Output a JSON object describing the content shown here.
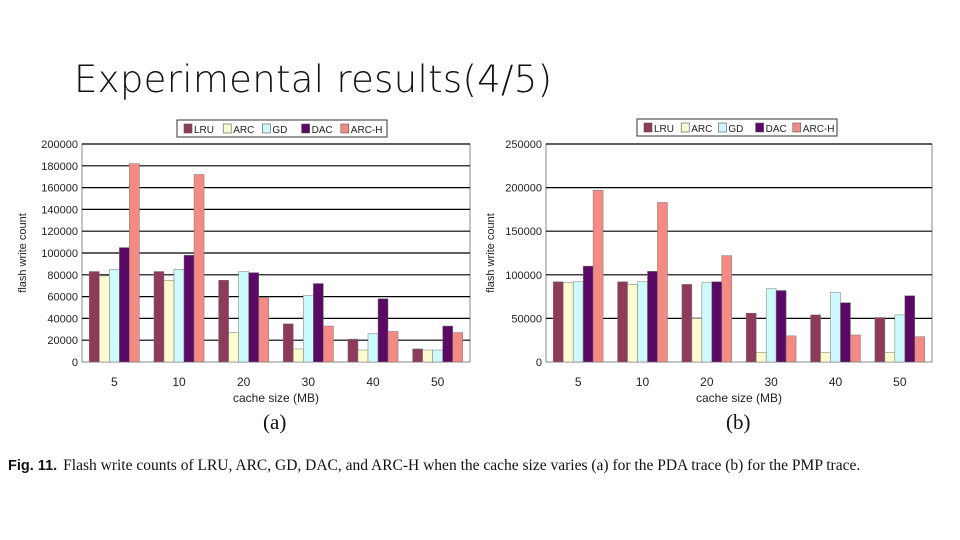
{
  "slide": {
    "title": "Experimental results(4/5)",
    "caption_label": "Fig. 11.",
    "caption_text": "Flash write counts of LRU, ARC, GD, DAC, and ARC-H when the cache size varies (a) for the PDA trace (b) for the PMP trace."
  },
  "colors": {
    "LRU": "#8e3a5b",
    "ARC": "#fbfbce",
    "GD": "#cdfafd",
    "DAC": "#5a0a64",
    "ARC-H": "#f48a84"
  },
  "chart_data": [
    {
      "type": "bar",
      "panel_label": "(a)",
      "title": "",
      "xlabel": "cache size (MB)",
      "ylabel": "flash write count",
      "categories": [
        "5",
        "10",
        "20",
        "30",
        "40",
        "50"
      ],
      "ylim": [
        0,
        200000
      ],
      "yticks": [
        "0",
        "20000",
        "40000",
        "60000",
        "80000",
        "100000",
        "120000",
        "140000",
        "160000",
        "180000",
        "200000"
      ],
      "legend_position": "top",
      "grid": true,
      "series": [
        {
          "name": "LRU",
          "values": [
            83000,
            83000,
            75000,
            35000,
            21000,
            12000
          ]
        },
        {
          "name": "ARC",
          "values": [
            79000,
            75000,
            27000,
            12000,
            11000,
            11000
          ]
        },
        {
          "name": "GD",
          "values": [
            85000,
            85000,
            83000,
            61000,
            26000,
            11000
          ]
        },
        {
          "name": "DAC",
          "values": [
            105000,
            98000,
            82000,
            72000,
            58000,
            33000
          ]
        },
        {
          "name": "ARC-H",
          "values": [
            182000,
            172000,
            59000,
            33000,
            28000,
            27000
          ]
        }
      ]
    },
    {
      "type": "bar",
      "panel_label": "(b)",
      "title": "",
      "xlabel": "cache size (MB)",
      "ylabel": "flash write count",
      "categories": [
        "5",
        "10",
        "20",
        "30",
        "40",
        "50"
      ],
      "ylim": [
        0,
        250000
      ],
      "yticks": [
        "0",
        "50000",
        "100000",
        "150000",
        "200000",
        "250000"
      ],
      "legend_position": "top",
      "grid": true,
      "series": [
        {
          "name": "LRU",
          "values": [
            92000,
            92000,
            89000,
            56000,
            54000,
            51000
          ]
        },
        {
          "name": "ARC",
          "values": [
            91000,
            89000,
            50000,
            11000,
            11000,
            11000
          ]
        },
        {
          "name": "GD",
          "values": [
            92000,
            92000,
            91000,
            84000,
            80000,
            54000
          ]
        },
        {
          "name": "DAC",
          "values": [
            110000,
            104000,
            92000,
            82000,
            68000,
            76000
          ]
        },
        {
          "name": "ARC-H",
          "values": [
            197000,
            183000,
            122000,
            30000,
            31000,
            29000
          ]
        }
      ]
    }
  ]
}
